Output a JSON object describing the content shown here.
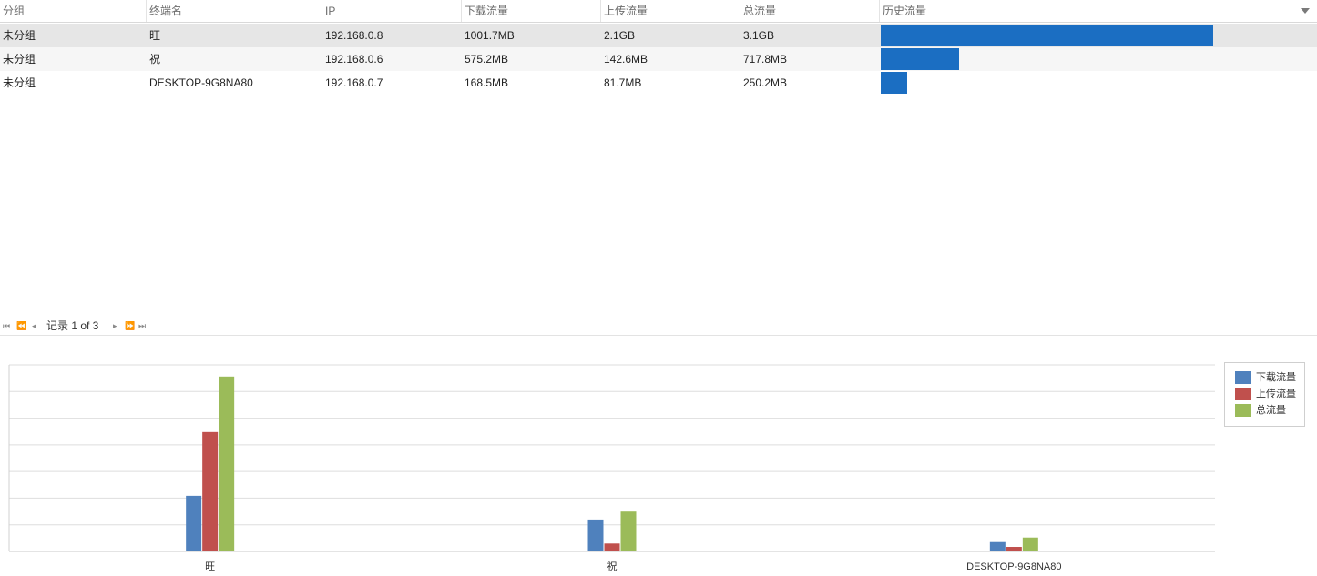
{
  "table": {
    "columns": [
      "分组",
      "终端名",
      "IP",
      "下载流量",
      "上传流量",
      "总流量",
      "历史流量"
    ],
    "rows": [
      {
        "group": "未分组",
        "name": "旺",
        "ip": "192.168.0.8",
        "download": "1001.7MB",
        "upload": "2.1GB",
        "total": "3.1GB",
        "history_fraction": 1.0
      },
      {
        "group": "未分组",
        "name": "祝",
        "ip": "192.168.0.6",
        "download": "575.2MB",
        "upload": "142.6MB",
        "total": "717.8MB",
        "history_fraction": 0.235
      },
      {
        "group": "未分组",
        "name": "DESKTOP-9G8NA80",
        "ip": "192.168.0.7",
        "download": "168.5MB",
        "upload": "81.7MB",
        "total": "250.2MB",
        "history_fraction": 0.08
      }
    ],
    "selected_row": 0
  },
  "pager": {
    "first_icon": "first-page-icon",
    "prev_page_icon": "prev-page-icon",
    "prev_icon": "prev-record-icon",
    "text": "记录 1 of 3",
    "next_icon": "next-record-icon",
    "next_page_icon": "next-page-icon",
    "last_icon": "last-page-icon"
  },
  "chart_data": {
    "type": "bar",
    "categories": [
      "旺",
      "祝",
      "DESKTOP-9G8NA80"
    ],
    "series": [
      {
        "name": "下载流量",
        "color": "#4f81bd",
        "values": [
          1001.7,
          575.2,
          168.5
        ]
      },
      {
        "name": "上传流量",
        "color": "#c0504d",
        "values": [
          2150,
          142.6,
          81.7
        ]
      },
      {
        "name": "总流量",
        "color": "#9bbb59",
        "values": [
          3150,
          717.8,
          250.2
        ]
      }
    ],
    "ylim": [
      0,
      3360
    ],
    "grid": true,
    "legend": "right"
  }
}
